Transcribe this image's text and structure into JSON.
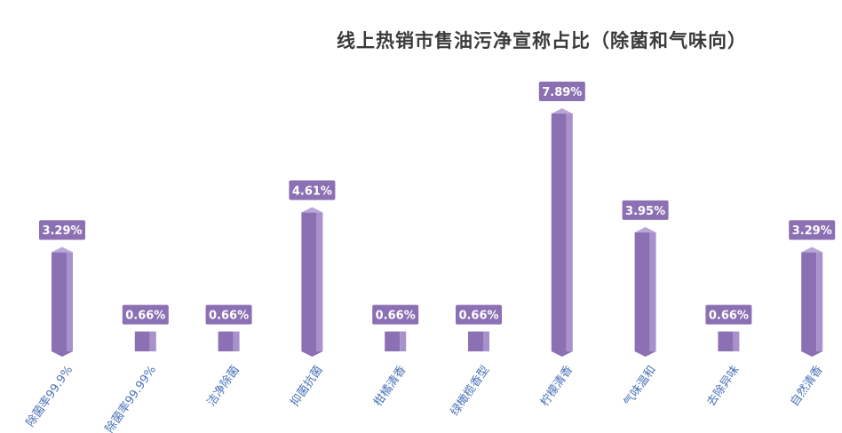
{
  "chart_data": {
    "type": "bar",
    "title": "线上热销市售油污净宣称占比（除菌和气味向）",
    "categories": [
      "除菌率99.9%",
      "除菌率99.99%",
      "洁净除菌",
      "抑菌抗菌",
      "柑橘清香",
      "绿橄榄香型",
      "柠檬清香",
      "气味温和",
      "去除异味",
      "自然清香"
    ],
    "values": [
      3.29,
      0.66,
      0.66,
      4.61,
      0.66,
      0.66,
      7.89,
      3.95,
      0.66,
      3.29
    ],
    "value_labels": [
      "3.29%",
      "0.66%",
      "0.66%",
      "4.61%",
      "0.66%",
      "0.66%",
      "7.89%",
      "3.95%",
      "0.66%",
      "3.29%"
    ],
    "unit": "%",
    "ylim": [
      0,
      7.89
    ],
    "grid": false,
    "legend": "none",
    "colors": {
      "bar_front": "#8c70b4",
      "bar_side": "#a892cc",
      "bar_top": "#b9a6d8",
      "label_bg": "#8c70b4",
      "label_text": "#ffffff",
      "category_text": "#4a72b8",
      "title_text": "#3a3a3a"
    }
  }
}
